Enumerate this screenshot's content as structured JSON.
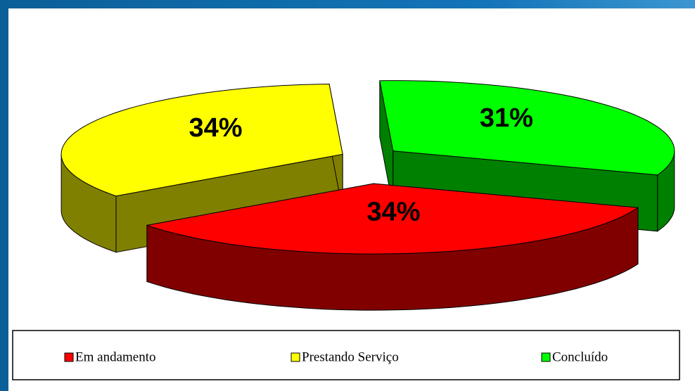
{
  "chart_data": {
    "type": "pie",
    "categories": [
      "Em andamento",
      "Prestando Serviço",
      "Concluído"
    ],
    "values": [
      34,
      34,
      31
    ],
    "value_labels": [
      "34%",
      "34%",
      "31%"
    ],
    "colors": [
      "#ff0000",
      "#ffff00",
      "#00ff00"
    ],
    "legend": "bottom"
  }
}
